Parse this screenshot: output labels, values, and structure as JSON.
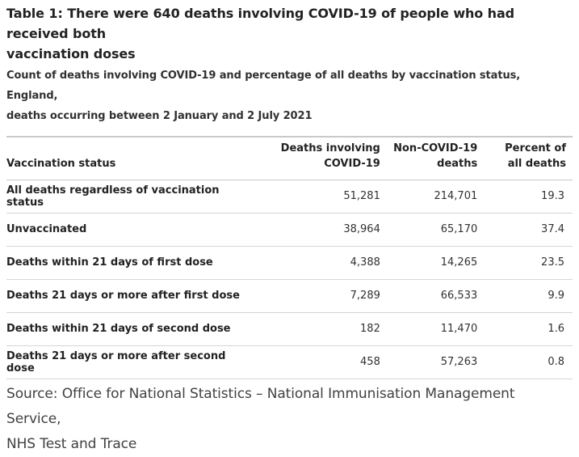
{
  "title_line1": "Table 1: There were 640 deaths involving COVID-19 of people who had received both",
  "title_line2": "vaccination doses",
  "subtitle_line1": "Count of deaths involving COVID-19 and percentage of all deaths by vaccination status, England,",
  "subtitle_line2": "deaths occurring between 2 January and 2 July 2021",
  "header": {
    "col0": "Vaccination status",
    "col1_line1": "Deaths involving",
    "col1_line2": "COVID-19",
    "col2_line1": "Non-COVID-19",
    "col2_line2": "deaths",
    "col3_line1": "Percent of",
    "col3_line2": "all deaths"
  },
  "rows": [
    {
      "status": "All deaths regardless of vaccination status",
      "covid": "51,281",
      "non_covid": "214,701",
      "percent": "19.3"
    },
    {
      "status": "Unvaccinated",
      "covid": "38,964",
      "non_covid": "65,170",
      "percent": "37.4"
    },
    {
      "status": "Deaths within 21 days of first dose",
      "covid": "4,388",
      "non_covid": "14,265",
      "percent": "23.5"
    },
    {
      "status": "Deaths 21 days or more after first dose",
      "covid": "7,289",
      "non_covid": "66,533",
      "percent": "9.9"
    },
    {
      "status": "Deaths within 21 days of second dose",
      "covid": "182",
      "non_covid": "11,470",
      "percent": "1.6"
    },
    {
      "status": "Deaths 21 days or more after second dose",
      "covid": "458",
      "non_covid": "57,263",
      "percent": "0.8"
    }
  ],
  "source_line1": "Source: Office for National Statistics – National Immunisation Management Service,",
  "source_line2": "NHS Test and Trace"
}
